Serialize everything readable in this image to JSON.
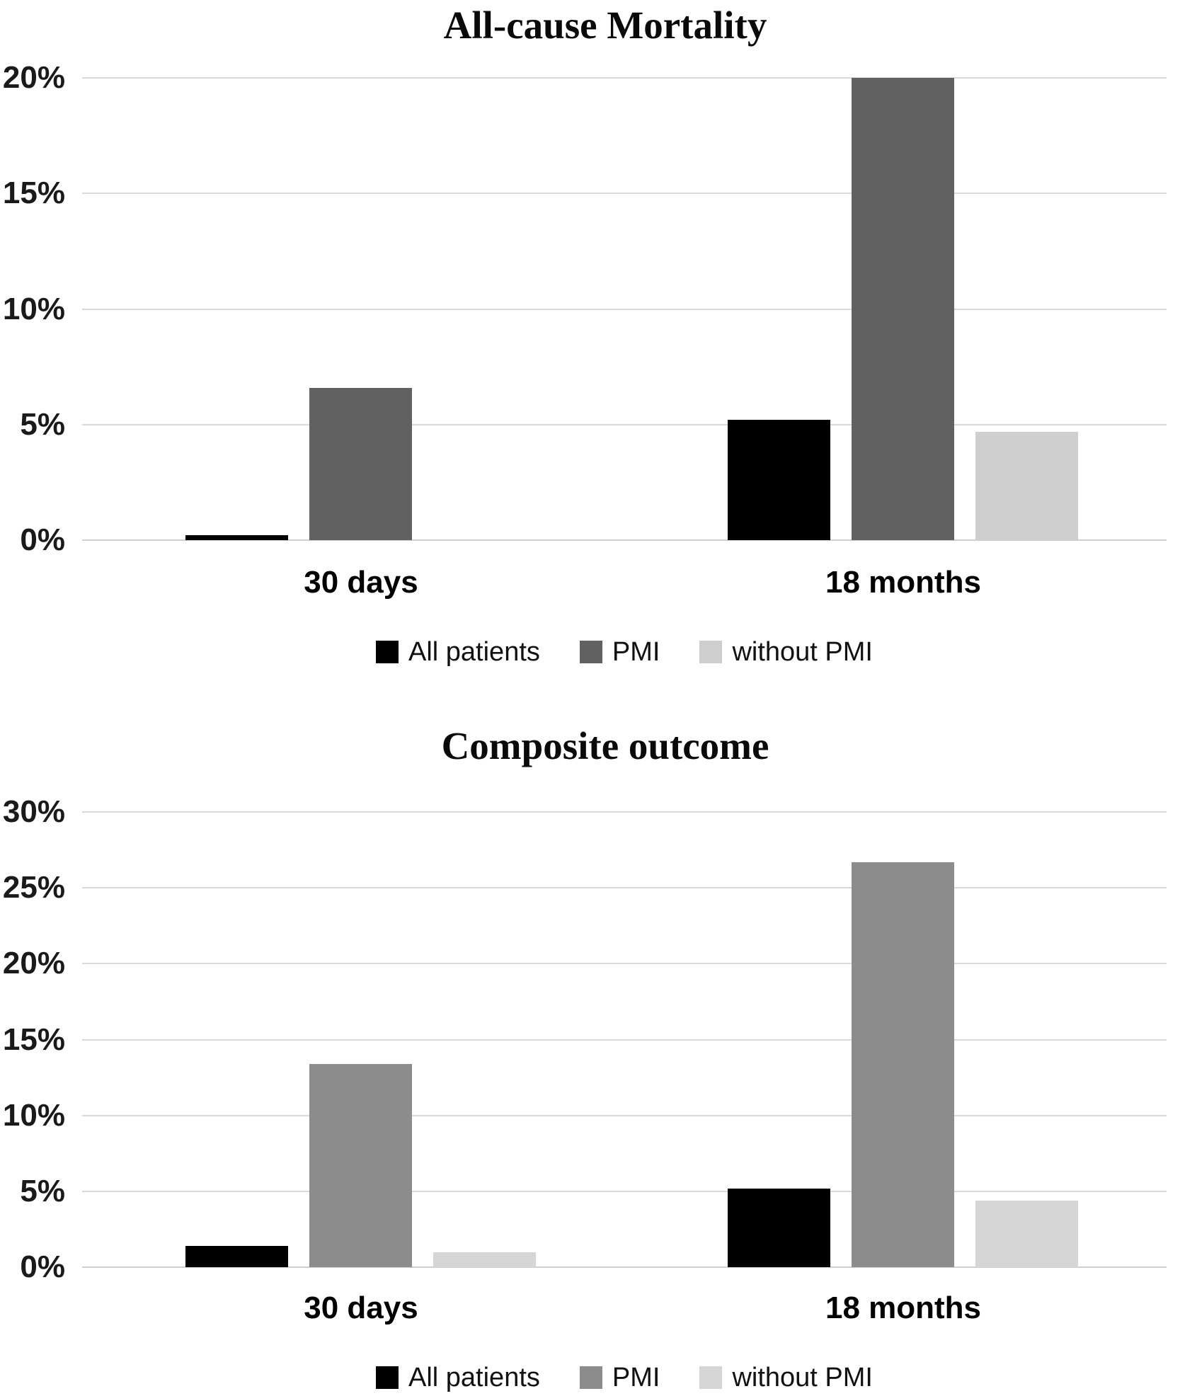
{
  "chart_data": [
    {
      "type": "bar",
      "title": "All-cause Mortality",
      "categories": [
        "30 days",
        "18 months"
      ],
      "series": [
        {
          "name": "All patients",
          "color": "#000000",
          "values": [
            0.2,
            5.2
          ]
        },
        {
          "name": "PMI",
          "color": "#616161",
          "values": [
            6.6,
            20.0
          ]
        },
        {
          "name": "without PMI",
          "color": "#cecece",
          "values": [
            0.0,
            4.7
          ]
        }
      ],
      "xlabel": "",
      "ylabel": "",
      "ylim": [
        0,
        20
      ],
      "ytick_step": 5,
      "ytick_labels": [
        "0%",
        "5%",
        "10%",
        "15%",
        "20%"
      ],
      "grid": true,
      "legend_position": "bottom",
      "legend": [
        "All patients",
        "PMI",
        "without PMI"
      ]
    },
    {
      "type": "bar",
      "title": "Composite outcome",
      "categories": [
        "30 days",
        "18 months"
      ],
      "series": [
        {
          "name": "All patients",
          "color": "#000000",
          "values": [
            1.4,
            5.2
          ]
        },
        {
          "name": "PMI",
          "color": "#8c8c8c",
          "values": [
            13.4,
            26.7
          ]
        },
        {
          "name": "without PMI",
          "color": "#d5d5d5",
          "values": [
            1.0,
            4.4
          ]
        }
      ],
      "xlabel": "",
      "ylabel": "",
      "ylim": [
        0,
        30
      ],
      "ytick_step": 5,
      "ytick_labels": [
        "0%",
        "5%",
        "10%",
        "15%",
        "20%",
        "25%",
        "30%"
      ],
      "grid": true,
      "legend_position": "bottom",
      "legend": [
        "All patients",
        "PMI",
        "without PMI"
      ]
    }
  ]
}
